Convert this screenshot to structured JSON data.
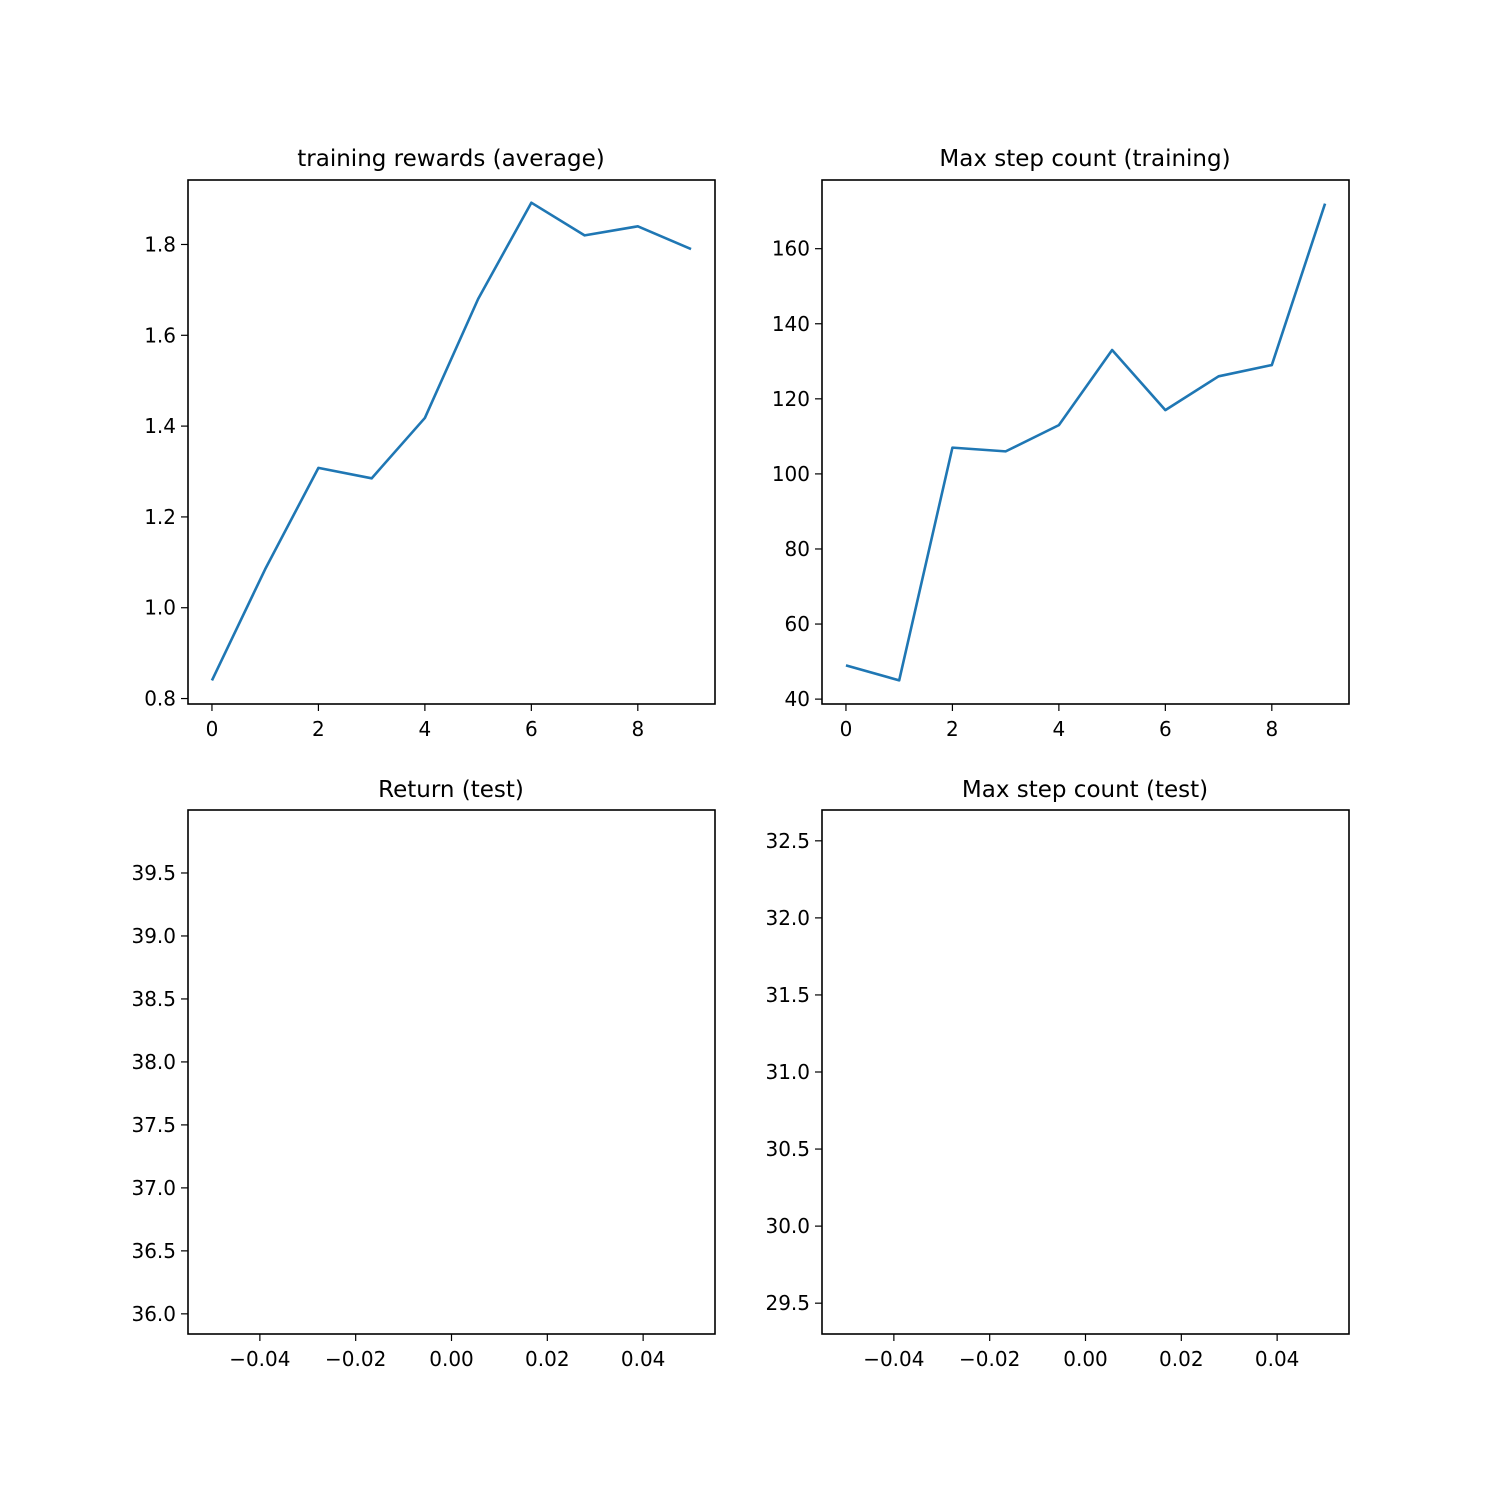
{
  "chart_data": [
    {
      "type": "line",
      "title": "training rewards (average)",
      "xlabel": "",
      "ylabel": "",
      "xlim": [
        -0.45,
        9.45
      ],
      "ylim": [
        0.788,
        1.942
      ],
      "xticks": [
        0,
        2,
        4,
        6,
        8
      ],
      "xtick_labels": [
        "0",
        "2",
        "4",
        "6",
        "8"
      ],
      "yticks": [
        0.8,
        1.0,
        1.2,
        1.4,
        1.6,
        1.8
      ],
      "ytick_labels": [
        "0.8",
        "1.0",
        "1.2",
        "1.4",
        "1.6",
        "1.8"
      ],
      "grid": false,
      "legend": "none",
      "series": [
        {
          "color": "#1f77b4",
          "x": [
            0,
            1,
            2,
            3,
            4,
            5,
            6,
            7,
            8,
            9
          ],
          "values": [
            0.84,
            1.085,
            1.308,
            1.285,
            1.418,
            1.68,
            1.892,
            1.82,
            1.84,
            1.79
          ]
        }
      ]
    },
    {
      "type": "line",
      "title": "Max step count (training)",
      "xlabel": "",
      "ylabel": "",
      "xlim": [
        -0.45,
        9.45
      ],
      "ylim": [
        38.7,
        178.3
      ],
      "xticks": [
        0,
        2,
        4,
        6,
        8
      ],
      "xtick_labels": [
        "0",
        "2",
        "4",
        "6",
        "8"
      ],
      "yticks": [
        40,
        60,
        80,
        100,
        120,
        140,
        160
      ],
      "ytick_labels": [
        "40",
        "60",
        "80",
        "100",
        "120",
        "140",
        "160"
      ],
      "grid": false,
      "legend": "none",
      "series": [
        {
          "color": "#1f77b4",
          "x": [
            0,
            1,
            2,
            3,
            4,
            5,
            6,
            7,
            8,
            9
          ],
          "values": [
            49,
            45,
            107,
            106,
            113,
            133,
            117,
            126,
            129,
            172
          ]
        }
      ]
    },
    {
      "type": "line",
      "title": "Return (test)",
      "xlabel": "",
      "ylabel": "",
      "xlim": [
        -0.055,
        0.055
      ],
      "ylim": [
        35.84,
        40.0
      ],
      "xticks": [
        -0.04,
        -0.02,
        0.0,
        0.02,
        0.04
      ],
      "xtick_labels": [
        "−0.04",
        "−0.02",
        "0.00",
        "0.02",
        "0.04"
      ],
      "yticks": [
        36.0,
        36.5,
        37.0,
        37.5,
        38.0,
        38.5,
        39.0,
        39.5
      ],
      "ytick_labels": [
        "36.0",
        "36.5",
        "37.0",
        "37.5",
        "38.0",
        "38.5",
        "39.0",
        "39.5"
      ],
      "grid": false,
      "legend": "none",
      "series": []
    },
    {
      "type": "line",
      "title": "Max step count (test)",
      "xlabel": "",
      "ylabel": "",
      "xlim": [
        -0.055,
        0.055
      ],
      "ylim": [
        29.3,
        32.7
      ],
      "xticks": [
        -0.04,
        -0.02,
        0.0,
        0.02,
        0.04
      ],
      "xtick_labels": [
        "−0.04",
        "−0.02",
        "0.00",
        "0.02",
        "0.04"
      ],
      "yticks": [
        29.5,
        30.0,
        30.5,
        31.0,
        31.5,
        32.0,
        32.5
      ],
      "ytick_labels": [
        "29.5",
        "30.0",
        "30.5",
        "31.0",
        "31.5",
        "32.0",
        "32.5"
      ],
      "grid": false,
      "legend": "none",
      "series": []
    }
  ]
}
